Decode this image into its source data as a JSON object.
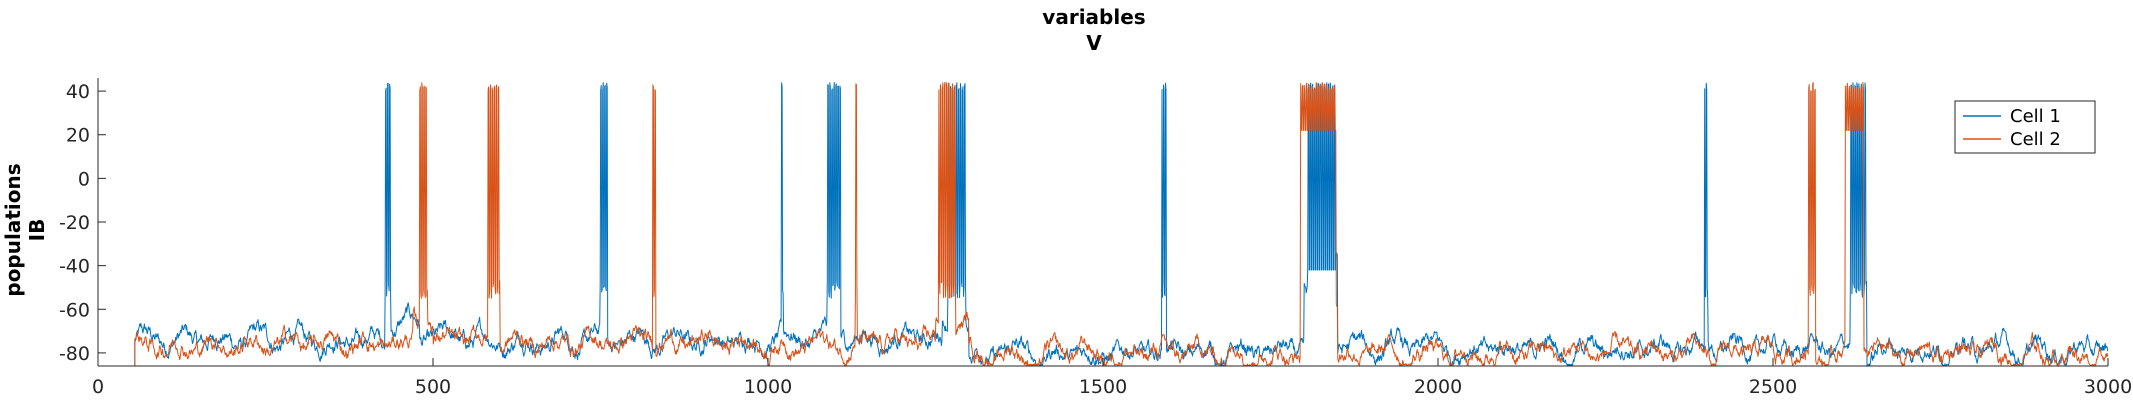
{
  "chart_data": {
    "type": "line",
    "title_lines": [
      "variables",
      "V"
    ],
    "ylabel_lines": [
      "populations",
      "IB"
    ],
    "xlabel": "",
    "xlim": [
      0,
      3000
    ],
    "ylim": [
      -86,
      46
    ],
    "xticks": [
      0,
      500,
      1000,
      1500,
      2000,
      2500,
      3000
    ],
    "yticks": [
      -80,
      -60,
      -40,
      -20,
      0,
      20,
      40
    ],
    "grid": false,
    "legend": "top-right",
    "series": [
      {
        "name": "Cell 1",
        "color": "#0072BD",
        "baseline": -75,
        "baseline_segments": [
          [
            55,
            430,
            -74
          ],
          [
            430,
            480,
            -66
          ],
          [
            480,
            1000,
            -74
          ],
          [
            1000,
            1260,
            -73
          ],
          [
            1260,
            1300,
            -66
          ],
          [
            1300,
            1800,
            -80
          ],
          [
            1800,
            1850,
            -55
          ],
          [
            1850,
            3000,
            -78
          ]
        ],
        "plateaus": [
          [
            1805,
            1850,
            -34
          ]
        ],
        "bursts": [
          [
            428,
            437
          ],
          [
            749,
            760
          ],
          [
            1020,
            1023
          ],
          [
            1088,
            1108
          ],
          [
            1268,
            1295
          ],
          [
            1588,
            1594
          ],
          [
            1805,
            1848
          ],
          [
            2398,
            2403
          ],
          [
            2615,
            2640
          ]
        ]
      },
      {
        "name": "Cell 2",
        "color": "#D95319",
        "baseline": -76,
        "baseline_segments": [
          [
            55,
            470,
            -76
          ],
          [
            470,
            500,
            -66
          ],
          [
            500,
            1000,
            -75
          ],
          [
            1000,
            1250,
            -76
          ],
          [
            1250,
            1300,
            -66
          ],
          [
            1300,
            1800,
            -80
          ],
          [
            1800,
            1850,
            -55
          ],
          [
            1850,
            3000,
            -80
          ]
        ],
        "plateaus": [
          [
            1795,
            1848,
            30
          ],
          [
            2608,
            2635,
            30
          ]
        ],
        "bursts": [
          [
            480,
            492
          ],
          [
            582,
            600
          ],
          [
            828,
            832
          ],
          [
            1130,
            1133
          ],
          [
            1255,
            1280
          ],
          [
            1795,
            1848
          ],
          [
            2553,
            2563
          ],
          [
            2608,
            2635
          ]
        ]
      }
    ]
  }
}
